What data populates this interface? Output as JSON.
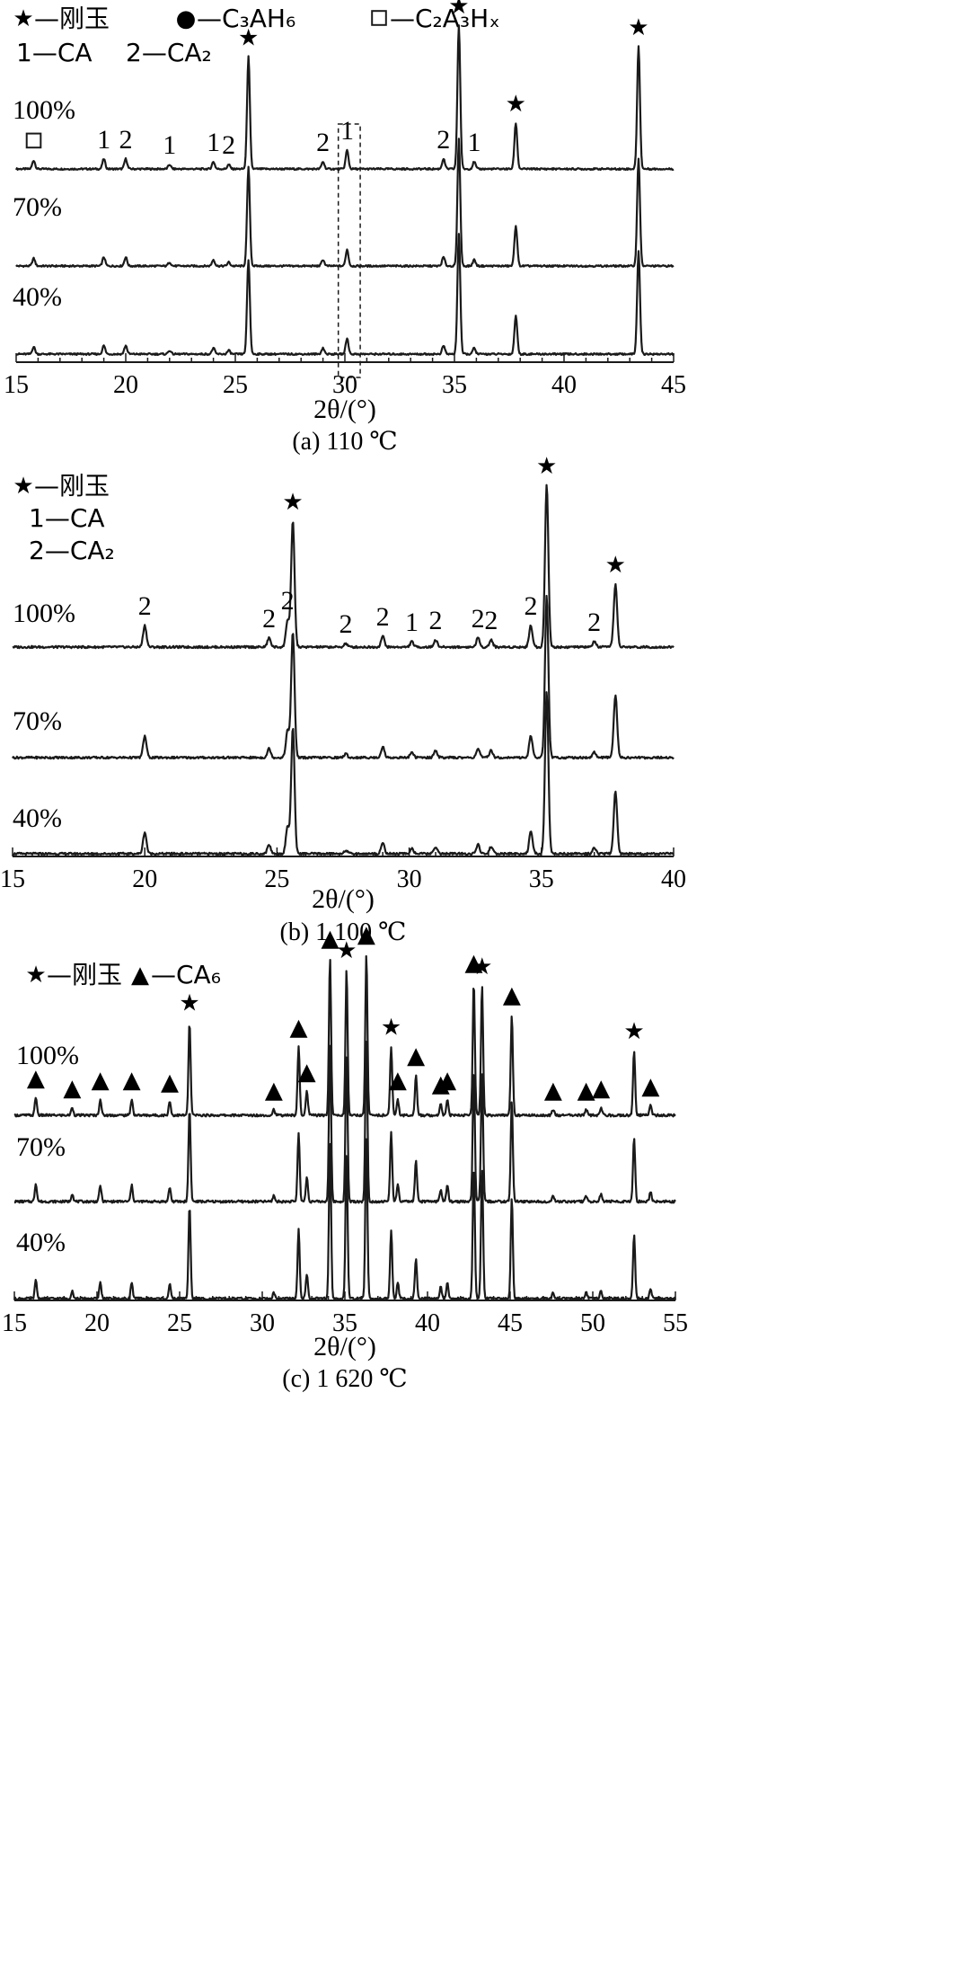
{
  "figure": {
    "background": "#ffffff",
    "line_color": "#1a1a1a"
  },
  "chart_data": [
    {
      "type": "line",
      "caption": "(a) 110 ℃",
      "xlabel": "2θ/(°)",
      "xlim": [
        15,
        45
      ],
      "xticks": [
        15,
        20,
        25,
        30,
        35,
        40,
        45
      ],
      "legend": [
        {
          "symbol": "★",
          "text": "—刚玉"
        },
        {
          "symbol": "●",
          "text": "—C₃AH₆"
        },
        {
          "symbol": "□",
          "text": "—C₂A₃Hₓ"
        },
        {
          "symbol": "",
          "text": "1—CA"
        },
        {
          "symbol": "",
          "text": "2—CA₂"
        }
      ],
      "series_labels": [
        "100%",
        "70%",
        "40%"
      ],
      "highlight_box": {
        "x_from": 29.7,
        "x_to": 30.7,
        "style": "dashed"
      },
      "peaks": [
        {
          "x": 15.8,
          "h": 0.06,
          "phase": "C2A3Hx",
          "marker": "□"
        },
        {
          "x": 19.0,
          "h": 0.07,
          "phase": "CA",
          "marker": "1"
        },
        {
          "x": 20.0,
          "h": 0.07,
          "phase": "CA2",
          "marker": "2"
        },
        {
          "x": 22.0,
          "h": 0.03,
          "phase": "CA",
          "marker": "1"
        },
        {
          "x": 24.0,
          "h": 0.05,
          "phase": "CA",
          "marker": "1"
        },
        {
          "x": 24.7,
          "h": 0.03,
          "phase": "CA2",
          "marker": "2"
        },
        {
          "x": 25.6,
          "h": 0.78,
          "phase": "corundum",
          "marker": "★"
        },
        {
          "x": 29.0,
          "h": 0.05,
          "phase": "CA2",
          "marker": "2"
        },
        {
          "x": 30.1,
          "h": 0.13,
          "phase": "CA",
          "marker": "1"
        },
        {
          "x": 34.5,
          "h": 0.07,
          "phase": "CA2",
          "marker": "2"
        },
        {
          "x": 35.2,
          "h": 1.0,
          "phase": "corundum",
          "marker": "★"
        },
        {
          "x": 35.9,
          "h": 0.05,
          "phase": "CA",
          "marker": "1"
        },
        {
          "x": 37.8,
          "h": 0.32,
          "phase": "corundum",
          "marker": "★"
        },
        {
          "x": 43.4,
          "h": 0.85,
          "phase": "corundum",
          "marker": "★"
        }
      ],
      "pattern_scale": {
        "100%": 1.0,
        "70%": 0.88,
        "40%": 0.84
      }
    },
    {
      "type": "line",
      "caption": "(b) 1 100 ℃",
      "xlabel": "2θ/(°)",
      "xlim": [
        15,
        40
      ],
      "xticks": [
        15,
        20,
        25,
        30,
        35,
        40
      ],
      "legend": [
        {
          "symbol": "★",
          "text": "—刚玉"
        },
        {
          "symbol": "",
          "text": "1—CA"
        },
        {
          "symbol": "",
          "text": "2—CA₂"
        }
      ],
      "series_labels": [
        "100%",
        "70%",
        "40%"
      ],
      "peaks": [
        {
          "x": 20.0,
          "h": 0.12,
          "phase": "CA2",
          "marker": "2"
        },
        {
          "x": 24.7,
          "h": 0.05,
          "phase": "CA2",
          "marker": "2"
        },
        {
          "x": 25.4,
          "h": 0.15,
          "phase": "CA2",
          "marker": "2"
        },
        {
          "x": 25.6,
          "h": 0.7,
          "phase": "corundum",
          "marker": "★"
        },
        {
          "x": 27.6,
          "h": 0.02,
          "phase": "CA2",
          "marker": "2"
        },
        {
          "x": 29.0,
          "h": 0.06,
          "phase": "CA2",
          "marker": "2"
        },
        {
          "x": 30.1,
          "h": 0.03,
          "phase": "CA",
          "marker": "1"
        },
        {
          "x": 31.0,
          "h": 0.04,
          "phase": "CA2",
          "marker": "2"
        },
        {
          "x": 32.6,
          "h": 0.05,
          "phase": "CA2",
          "marker": "2"
        },
        {
          "x": 33.1,
          "h": 0.04,
          "phase": "CA2",
          "marker": "2"
        },
        {
          "x": 34.6,
          "h": 0.12,
          "phase": "CA2",
          "marker": "2"
        },
        {
          "x": 35.2,
          "h": 0.9,
          "phase": "corundum",
          "marker": "★"
        },
        {
          "x": 37.0,
          "h": 0.03,
          "phase": "CA2",
          "marker": "2"
        },
        {
          "x": 37.8,
          "h": 0.35,
          "phase": "corundum",
          "marker": "★"
        }
      ],
      "pattern_scale": {
        "100%": 1.0,
        "70%": 1.0,
        "40%": 1.0
      }
    },
    {
      "type": "line",
      "caption": "(c) 1 620 ℃",
      "xlabel": "2θ/(°)",
      "xlim": [
        15,
        55
      ],
      "xticks": [
        15,
        20,
        25,
        30,
        35,
        40,
        45,
        50,
        55
      ],
      "legend": [
        {
          "symbol": "★",
          "text": "—刚玉"
        },
        {
          "symbol": "▲",
          "text": "—CA₆"
        }
      ],
      "series_labels": [
        "100%",
        "70%",
        "40%"
      ],
      "peaks": [
        {
          "x": 16.3,
          "h": 0.09,
          "phase": "CA6",
          "marker": "▲"
        },
        {
          "x": 18.5,
          "h": 0.04,
          "phase": "CA6",
          "marker": "▲"
        },
        {
          "x": 20.2,
          "h": 0.08,
          "phase": "CA6",
          "marker": "▲"
        },
        {
          "x": 22.1,
          "h": 0.08,
          "phase": "CA6",
          "marker": "▲"
        },
        {
          "x": 24.4,
          "h": 0.07,
          "phase": "CA6",
          "marker": "▲"
        },
        {
          "x": 25.6,
          "h": 0.46,
          "phase": "corundum",
          "marker": "★"
        },
        {
          "x": 30.7,
          "h": 0.03,
          "phase": "CA6",
          "marker": "▲"
        },
        {
          "x": 32.2,
          "h": 0.34,
          "phase": "CA6",
          "marker": "▲"
        },
        {
          "x": 32.7,
          "h": 0.12,
          "phase": "CA6",
          "marker": "▲"
        },
        {
          "x": 34.1,
          "h": 0.78,
          "phase": "CA6",
          "marker": "▲"
        },
        {
          "x": 35.1,
          "h": 0.72,
          "phase": "corundum",
          "marker": "★"
        },
        {
          "x": 36.3,
          "h": 0.8,
          "phase": "CA6",
          "marker": "▲"
        },
        {
          "x": 37.8,
          "h": 0.34,
          "phase": "corundum",
          "marker": "★"
        },
        {
          "x": 38.2,
          "h": 0.08,
          "phase": "CA6",
          "marker": "▲"
        },
        {
          "x": 39.3,
          "h": 0.2,
          "phase": "CA6",
          "marker": "▲"
        },
        {
          "x": 40.8,
          "h": 0.06,
          "phase": "CA6",
          "marker": "▲"
        },
        {
          "x": 41.2,
          "h": 0.08,
          "phase": "CA6",
          "marker": "▲"
        },
        {
          "x": 42.8,
          "h": 0.66,
          "phase": "CA6",
          "marker": "▲"
        },
        {
          "x": 43.3,
          "h": 0.64,
          "phase": "corundum",
          "marker": "★"
        },
        {
          "x": 45.1,
          "h": 0.5,
          "phase": "CA6",
          "marker": "▲"
        },
        {
          "x": 47.6,
          "h": 0.03,
          "phase": "CA6",
          "marker": "▲"
        },
        {
          "x": 49.6,
          "h": 0.03,
          "phase": "CA6",
          "marker": "▲"
        },
        {
          "x": 50.5,
          "h": 0.04,
          "phase": "CA6",
          "marker": "▲"
        },
        {
          "x": 52.5,
          "h": 0.32,
          "phase": "corundum",
          "marker": "★"
        },
        {
          "x": 53.5,
          "h": 0.05,
          "phase": "CA6",
          "marker": "▲"
        }
      ],
      "pattern_scale": {
        "100%": 1.0,
        "70%": 1.0,
        "40%": 1.0
      }
    }
  ]
}
